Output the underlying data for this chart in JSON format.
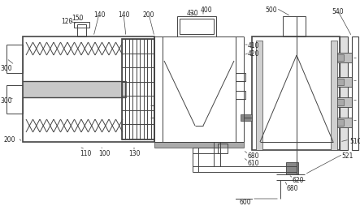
{
  "bg_color": "#ffffff",
  "line_color": "#444444",
  "lw": 0.7,
  "fig_w": 4.43,
  "fig_h": 2.54,
  "dpi": 100
}
